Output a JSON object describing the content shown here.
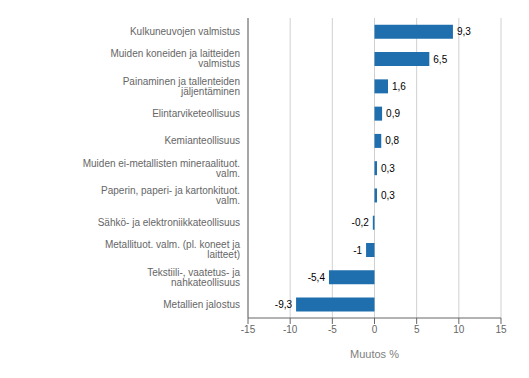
{
  "chart_data": {
    "type": "bar",
    "orientation": "horizontal",
    "categories": [
      "Metallien jalostus",
      "Tekstiili-, vaatetus- ja nahkateollisuus",
      "Metallituot. valm. (pl. koneet ja laitteet)",
      "Sähkö- ja elektroniikkateollisuus",
      "Paperin, paperi- ja kartonkituot. valm.",
      "Muiden ei-metallisten mineraalituot. valm.",
      "Kemianteollisuus",
      "Elintarviketeollisuus",
      "Painaminen ja tallenteiden jäljentäminen",
      "Muiden koneiden ja laitteiden valmistus",
      "Kulkuneuvojen valmistus"
    ],
    "values": [
      -9.3,
      -5.4,
      -1.0,
      -0.2,
      0.3,
      0.3,
      0.8,
      0.9,
      1.6,
      6.5,
      9.3
    ],
    "value_labels": [
      "-9,3",
      "-5,4",
      "-1",
      "-0,2",
      "0,3",
      "0,3",
      "0,8",
      "0,9",
      "1,6",
      "6,5",
      "9,3"
    ],
    "data_labels": true,
    "color": "#1F6FAE",
    "xlabel": "Muutos %",
    "xlim": [
      -15,
      15
    ],
    "xticks": [
      -15,
      -10,
      -5,
      0,
      5,
      10,
      15
    ],
    "grid": true
  }
}
